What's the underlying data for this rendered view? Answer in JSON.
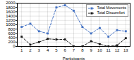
{
  "chart_data": {
    "type": "line",
    "xlabel": "Participants",
    "x": [
      1,
      2,
      3,
      4,
      5,
      6,
      7,
      8,
      9,
      10,
      11,
      12,
      13
    ],
    "series": [
      {
        "name": "Total Movements",
        "color": "#4472C4",
        "marker": "square",
        "line_style": "dashed",
        "values": [
          900,
          1050,
          700,
          600,
          1800,
          1900,
          1650,
          900,
          600,
          850,
          450,
          750,
          700
        ]
      },
      {
        "name": "Total Discomfort",
        "color": "#1a1a1a",
        "marker": "square",
        "line_style": "dashed",
        "values": [
          450,
          80,
          200,
          350,
          320,
          320,
          0,
          0,
          240,
          100,
          0,
          50,
          380
        ]
      }
    ],
    "xlim": [
      0.5,
      13.5
    ],
    "xticks": [
      1,
      2,
      3,
      4,
      5,
      6,
      7,
      8,
      9,
      10,
      11,
      12,
      13
    ],
    "ylim": [
      0,
      2000
    ],
    "yticks": [
      0,
      200,
      400,
      600,
      800,
      1000,
      1200,
      1400,
      1600,
      1800,
      2000
    ],
    "grid": true,
    "legend": "upper right"
  }
}
